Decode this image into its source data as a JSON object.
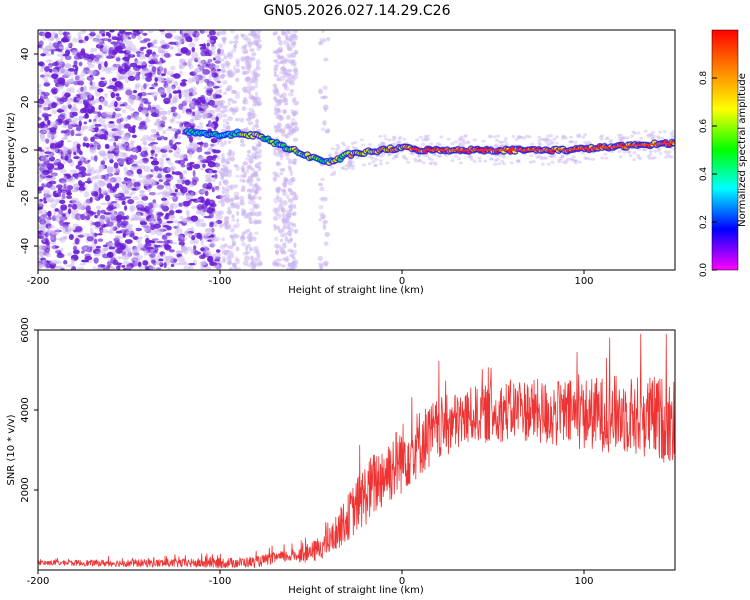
{
  "title": "GN05.2026.027.14.29.C26",
  "colors": {
    "series": "#ee3333",
    "background": "#ffffff",
    "axis": "#000000",
    "scatter_sparse": "#c9b3f0",
    "scatter_dense": "#6b1fd6"
  },
  "chart_data": [
    {
      "type": "heatmap",
      "name": "spectrogram",
      "xlabel": "Height of straight line (km)",
      "ylabel": "Frequency (Hz)",
      "xlim": [
        -200,
        150
      ],
      "ylim": [
        -50,
        50
      ],
      "xticks": [
        -200,
        -100,
        0,
        100
      ],
      "yticks": [
        -40,
        -20,
        0,
        20,
        40
      ],
      "ridge": {
        "description": "dominant frequency track",
        "x": [
          -120,
          -100,
          -90,
          -80,
          -70,
          -60,
          -50,
          -45,
          -40,
          -35,
          -30,
          -20,
          -10,
          0,
          10,
          30,
          50,
          70,
          90,
          110,
          130,
          150
        ],
        "y": [
          8,
          6,
          7,
          6,
          3,
          0,
          -3,
          -4,
          -5,
          -4,
          -2,
          -1,
          0,
          1,
          0,
          0,
          0,
          0,
          0,
          1,
          2,
          3
        ]
      },
      "colorbar": {
        "label": "Normalized spectral amplitude",
        "ticks": [
          "0.0",
          "0.2",
          "0.4",
          "0.6",
          "0.8"
        ],
        "range": [
          0,
          1
        ]
      }
    },
    {
      "type": "line",
      "name": "snr",
      "xlabel": "Height of straight line (km)",
      "ylabel": "SNR (10 * v/v)",
      "xlim": [
        -200,
        150
      ],
      "ylim": [
        0,
        6000
      ],
      "xticks": [
        -200,
        -100,
        0,
        100
      ],
      "yticks": [
        2000,
        4000,
        6000
      ],
      "envelope": {
        "description": "approximate mean SNR trend",
        "x": [
          -200,
          -150,
          -100,
          -80,
          -70,
          -60,
          -50,
          -40,
          -30,
          -20,
          -10,
          0,
          10,
          20,
          30,
          40,
          50,
          60,
          70,
          80,
          100,
          120,
          140,
          150
        ],
        "y": [
          180,
          170,
          170,
          200,
          300,
          360,
          420,
          700,
          1300,
          1900,
          2400,
          2800,
          3200,
          3500,
          3700,
          3900,
          3900,
          4000,
          4000,
          3900,
          3900,
          3900,
          3800,
          3700
        ]
      },
      "noise_amplitude": {
        "x": [
          -200,
          -60,
          -40,
          -20,
          0,
          40,
          100,
          150
        ],
        "y": [
          60,
          150,
          350,
          800,
          900,
          700,
          900,
          1100
        ]
      }
    }
  ]
}
